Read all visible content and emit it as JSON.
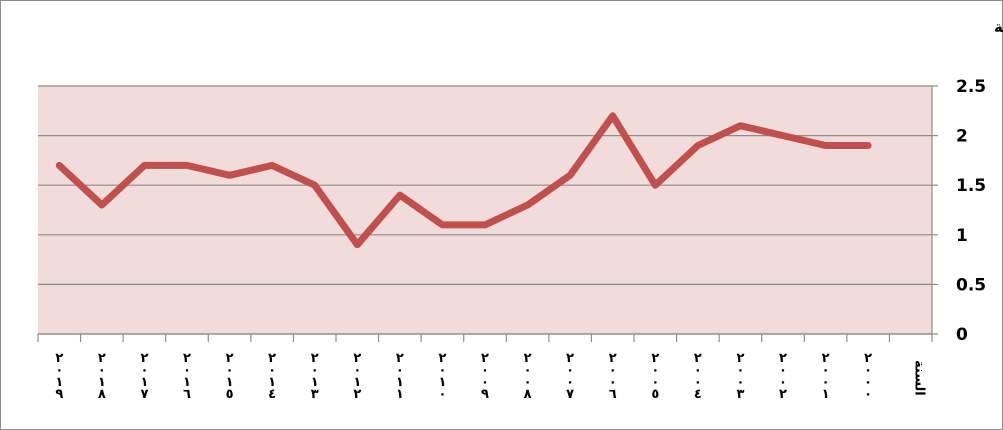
{
  "chart_data": {
    "type": "line",
    "title": "التنافسية السعرية",
    "xlabel": "السنة",
    "ylabel": "",
    "ylim": [
      0,
      2.5
    ],
    "yticks": [
      "0",
      "0.5",
      "1",
      "1.5",
      "2",
      "2.5"
    ],
    "grid": true,
    "legend": "none",
    "categories": [
      "٢٠١٩",
      "٢٠١٨",
      "٢٠١٧",
      "٢٠١٦",
      "٢٠١٥",
      "٢٠١٤",
      "٢٠١٣",
      "٢٠١٢",
      "٢٠١١",
      "٢٠١٠",
      "٢٠٠٩",
      "٢٠٠٨",
      "٢٠٠٧",
      "٢٠٠٦",
      "٢٠٠٥",
      "٢٠٠٤",
      "٢٠٠٣",
      "٢٠٠٢",
      "٢٠٠١",
      "٢٠٠٠"
    ],
    "series": [
      {
        "values": [
          1.7,
          1.3,
          1.7,
          1.7,
          1.6,
          1.7,
          1.5,
          0.9,
          1.4,
          1.1,
          1.1,
          1.3,
          1.6,
          2.2,
          1.5,
          1.9,
          2.1,
          2.0,
          1.9,
          1.9
        ]
      }
    ],
    "colors": {
      "line": "#c0504d",
      "plot_background": "#f2dcdb"
    }
  }
}
